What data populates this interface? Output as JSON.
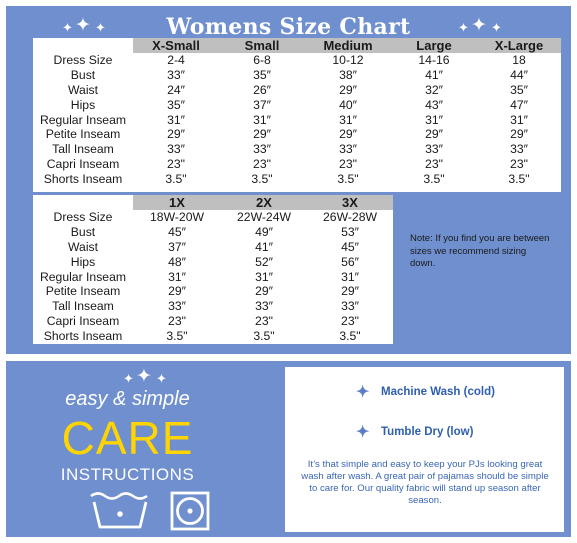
{
  "title": "Womens Size Chart",
  "table1": {
    "headers": [
      "X-Small",
      "Small",
      "Medium",
      "Large",
      "X-Large"
    ],
    "rows": [
      {
        "label": "Dress Size",
        "values": [
          "2-4",
          "6-8",
          "10-12",
          "14-16",
          "18"
        ]
      },
      {
        "label": "Bust",
        "values": [
          "33″",
          "35″",
          "38″",
          "41″",
          "44″"
        ]
      },
      {
        "label": "Waist",
        "values": [
          "24″",
          "26″",
          "29″",
          "32″",
          "35″"
        ]
      },
      {
        "label": "Hips",
        "values": [
          "35″",
          "37″",
          "40″",
          "43″",
          "47″"
        ]
      },
      {
        "label": "Regular Inseam",
        "values": [
          "31″",
          "31″",
          "31″",
          "31″",
          "31″"
        ]
      },
      {
        "label": "Petite Inseam",
        "values": [
          "29″",
          "29″",
          "29″",
          "29″",
          "29″"
        ]
      },
      {
        "label": "Tall Inseam",
        "values": [
          "33″",
          "33″",
          "33″",
          "33″",
          "33″"
        ]
      },
      {
        "label": "Capri Inseam",
        "values": [
          "23\"",
          "23\"",
          "23\"",
          "23\"",
          "23\""
        ]
      },
      {
        "label": "Shorts Inseam",
        "values": [
          "3.5\"",
          "3.5\"",
          "3.5\"",
          "3.5\"",
          "3.5\""
        ]
      }
    ]
  },
  "table2": {
    "headers": [
      "1X",
      "2X",
      "3X"
    ],
    "rows": [
      {
        "label": "Dress Size",
        "values": [
          "18W-20W",
          "22W-24W",
          "26W-28W"
        ]
      },
      {
        "label": "Bust",
        "values": [
          "45″",
          "49″",
          "53″"
        ]
      },
      {
        "label": "Waist",
        "values": [
          "37″",
          "41″",
          "45″"
        ]
      },
      {
        "label": "Hips",
        "values": [
          "48″",
          "52″",
          "56″"
        ]
      },
      {
        "label": "Regular Inseam",
        "values": [
          "31″",
          "31″",
          "31″"
        ]
      },
      {
        "label": "Petite Inseam",
        "values": [
          "29″",
          "29″",
          "29″"
        ]
      },
      {
        "label": "Tall Inseam",
        "values": [
          "33″",
          "33″",
          "33″"
        ]
      },
      {
        "label": "Capri Inseam",
        "values": [
          "23\"",
          "23\"",
          "23\""
        ]
      },
      {
        "label": "Shorts Inseam",
        "values": [
          "3.5\"",
          "3.5\"",
          "3.5\""
        ]
      }
    ]
  },
  "note": "Note: If you find you are between sizes we recommend sizing down.",
  "care": {
    "easy": "easy & simple",
    "big": "CARE",
    "instructions": "INSTRUCTIONS",
    "items": [
      "Machine Wash (cold)",
      "Tumble Dry (low)"
    ],
    "description": "It’s that simple and easy to keep your PJs looking great wash after wash. A great pair of pajamas should be simple to care for. Our quality fabric will stand up season after season.",
    "icons": [
      "wash-cold-icon",
      "tumble-dry-low-icon",
      "sparkle-icon"
    ]
  },
  "colors": {
    "panel": "#6f8fce",
    "header_cell": "#bfbfbf",
    "care_yellow": "#ffd400",
    "care_blue_text": "#2e5fae"
  }
}
